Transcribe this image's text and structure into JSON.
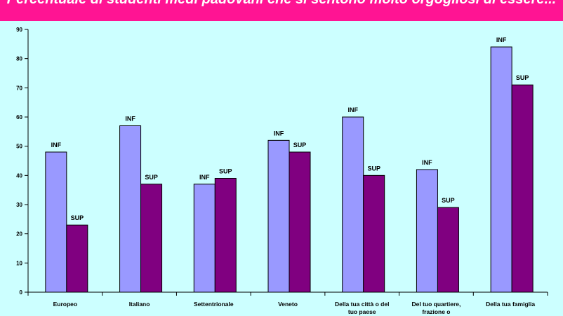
{
  "chart_data": {
    "type": "bar",
    "title": "Percentuale di studenti medi padovani che si sentono molto orgogliosi di essere...",
    "xlabel": "",
    "ylabel": "",
    "ylim": [
      0,
      90
    ],
    "yticks": [
      0,
      10,
      20,
      30,
      40,
      50,
      60,
      70,
      80,
      90
    ],
    "categories": [
      "Europeo",
      "Italiano",
      "Settentrionale",
      "Veneto",
      "Della tua città o del tuo paese",
      "Del tuo quartiere, frazione o",
      "Della tua famiglia"
    ],
    "series": [
      {
        "name": "INF",
        "color": "#9999ff",
        "values": [
          48,
          57,
          37,
          52,
          60,
          42,
          84
        ]
      },
      {
        "name": "SUP",
        "color": "#800080",
        "values": [
          23,
          37,
          39,
          48,
          40,
          29,
          71
        ]
      }
    ],
    "bar_label_color": "#000000",
    "grid": false
  }
}
